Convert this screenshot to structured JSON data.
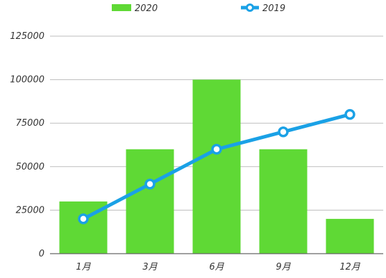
{
  "chart_data": {
    "type": "bar",
    "categories": [
      "1月",
      "3月",
      "6月",
      "9月",
      "12月"
    ],
    "series": [
      {
        "name": "2020",
        "type": "bar",
        "values": [
          30000,
          60000,
          100000,
          60000,
          20000
        ]
      },
      {
        "name": "2019",
        "type": "line",
        "values": [
          20000,
          40000,
          60000,
          70000,
          80000
        ]
      }
    ],
    "ylim": [
      0,
      125000
    ],
    "yticks": [
      "0",
      "25000",
      "50000",
      "75000",
      "100000",
      "125000"
    ],
    "grid": true,
    "legend_position": "top",
    "colors": {
      "bar": "#5fd935",
      "line": "#1aa1e6",
      "grid": "#bdbdbd",
      "axis": "#666666"
    }
  }
}
